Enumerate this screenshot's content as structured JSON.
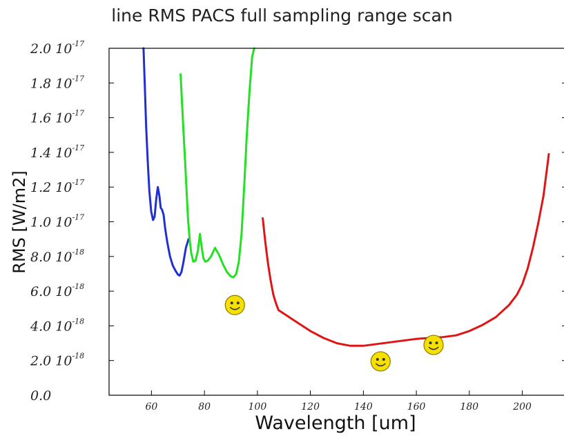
{
  "chart_data": {
    "type": "line",
    "title": "line RMS PACS full sampling range scan",
    "xlabel": "Wavelength [um]",
    "ylabel": "RMS [W/m2]",
    "xlim": [
      44,
      216
    ],
    "ylim": [
      0,
      2e-17
    ],
    "grid": false,
    "legend": "none",
    "x_ticks": [
      {
        "value": 60,
        "label": "60"
      },
      {
        "value": 80,
        "label": "80"
      },
      {
        "value": 100,
        "label": "100"
      },
      {
        "value": 120,
        "label": "120"
      },
      {
        "value": 140,
        "label": "140"
      },
      {
        "value": 160,
        "label": "160"
      },
      {
        "value": 180,
        "label": "180"
      },
      {
        "value": 200,
        "label": "200"
      }
    ],
    "y_ticks": [
      {
        "value": 0,
        "mantissa": "0.0",
        "exp": ""
      },
      {
        "value": 2e-18,
        "mantissa": "2.0 10",
        "exp": "-18"
      },
      {
        "value": 4e-18,
        "mantissa": "4.0 10",
        "exp": "-18"
      },
      {
        "value": 6e-18,
        "mantissa": "6.0 10",
        "exp": "-18"
      },
      {
        "value": 8e-18,
        "mantissa": "8.0 10",
        "exp": "-18"
      },
      {
        "value": 1e-17,
        "mantissa": "1.0 10",
        "exp": "-17"
      },
      {
        "value": 1.2e-17,
        "mantissa": "1.2 10",
        "exp": "-17"
      },
      {
        "value": 1.4e-17,
        "mantissa": "1.4 10",
        "exp": "-17"
      },
      {
        "value": 1.6e-17,
        "mantissa": "1.6 10",
        "exp": "-17"
      },
      {
        "value": 1.8e-17,
        "mantissa": "1.8 10",
        "exp": "-17"
      },
      {
        "value": 2e-17,
        "mantissa": "2.0 10",
        "exp": "-17"
      }
    ],
    "series": [
      {
        "color": "#1f2fd0",
        "x": [
          57.0,
          57.5,
          58.0,
          58.6,
          59.2,
          59.9,
          60.6,
          61.2,
          61.8,
          62.4,
          63.0,
          63.5,
          64.0,
          64.6,
          65.2,
          66.0,
          67.0,
          68.0,
          69.0,
          70.0,
          70.6,
          71.3,
          72.0,
          73.0,
          74.0
        ],
        "y": [
          2e-17,
          1.78e-17,
          1.55e-17,
          1.35e-17,
          1.18e-17,
          1.06e-17,
          1.01e-17,
          1.03e-17,
          1.13e-17,
          1.2e-17,
          1.15e-17,
          1.08e-17,
          1.07e-17,
          1.04e-17,
          9.6e-18,
          8.8e-18,
          8e-18,
          7.5e-18,
          7.2e-18,
          6.95e-18,
          6.9e-18,
          7.1e-18,
          7.6e-18,
          8.5e-18,
          9e-18
        ]
      },
      {
        "color": "#22e022",
        "x": [
          71.0,
          71.5,
          72.0,
          72.6,
          73.2,
          73.8,
          74.4,
          75.0,
          75.8,
          76.6,
          77.5,
          78.3,
          79.0,
          79.6,
          80.3,
          81.2,
          82.5,
          84.0,
          85.5,
          87.0,
          88.5,
          90.0,
          91.0,
          92.0,
          93.0,
          94.0,
          95.0,
          96.0,
          97.0,
          98.0,
          98.8
        ],
        "y": [
          1.85e-17,
          1.7e-17,
          1.55e-17,
          1.38e-17,
          1.2e-17,
          1.02e-17,
          9e-18,
          8.2e-18,
          7.7e-18,
          7.75e-18,
          8.3e-18,
          9.3e-18,
          8.5e-18,
          7.9e-18,
          7.7e-18,
          7.75e-18,
          8e-18,
          8.5e-18,
          8.1e-18,
          7.55e-18,
          7.1e-18,
          6.85e-18,
          6.8e-18,
          7e-18,
          7.7e-18,
          9.3e-18,
          1.2e-17,
          1.5e-17,
          1.75e-17,
          1.95e-17,
          2e-17
        ]
      },
      {
        "color": "#e01414",
        "x": [
          102,
          103,
          104,
          105,
          106,
          107,
          108,
          110,
          115,
          120,
          125,
          130,
          135,
          140,
          145,
          150,
          155,
          160,
          165,
          170,
          175,
          180,
          185,
          190,
          195,
          198,
          200,
          202,
          204,
          206,
          208,
          210
        ],
        "y": [
          1.02e-17,
          8.8e-18,
          7.6e-18,
          6.6e-18,
          5.8e-18,
          5.3e-18,
          4.9e-18,
          4.7e-18,
          4.2e-18,
          3.7e-18,
          3.3e-18,
          3e-18,
          2.85e-18,
          2.85e-18,
          2.95e-18,
          3.05e-18,
          3.15e-18,
          3.25e-18,
          3.3e-18,
          3.35e-18,
          3.45e-18,
          3.7e-18,
          4.05e-18,
          4.5e-18,
          5.2e-18,
          5.8e-18,
          6.4e-18,
          7.3e-18,
          8.5e-18,
          9.9e-18,
          1.15e-17,
          1.39e-17
        ]
      }
    ],
    "annotations": [
      {
        "kind": "smiley-face-icon",
        "x": 91.5,
        "y": 5.2e-18
      },
      {
        "kind": "smiley-face-icon",
        "x": 146.5,
        "y": 1.95e-18
      },
      {
        "kind": "smiley-face-icon",
        "x": 166.5,
        "y": 2.9e-18
      }
    ],
    "colors": {
      "axis": "#000000",
      "smiley_fill": "#f5e000",
      "smiley_stroke": "#8a7a00"
    }
  }
}
